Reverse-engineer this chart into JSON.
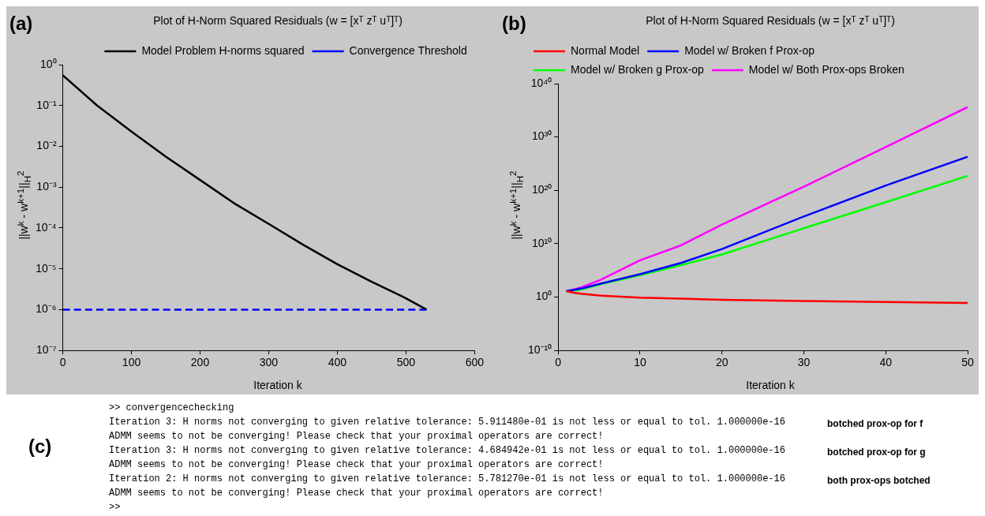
{
  "chart_data": [
    {
      "type": "line",
      "title": "Plot of H-Norm Squared Residuals (w = [xᵀ zᵀ uᵀ]ᵀ)",
      "xlabel": "Iteration k",
      "ylabel": "||w$^{k}$ - w$^{k+1}$||$_{H}$$^{2}$",
      "annotations": [
        "(a)"
      ],
      "log": "y",
      "legend": "top right",
      "marker": "none",
      "xlim": [
        0,
        600
      ],
      "xticks": [
        0,
        100,
        200,
        300,
        400,
        500,
        600
      ],
      "ylim": [
        1e-07,
        1
      ],
      "yticks": [
        {
          "value": 1e-07,
          "label": "10⁻⁷"
        },
        {
          "value": 1e-06,
          "label": "10⁻⁶"
        },
        {
          "value": 1e-05,
          "label": "10⁻⁵"
        },
        {
          "value": 0.0001,
          "label": "10⁻⁴"
        },
        {
          "value": 0.001,
          "label": "10⁻³"
        },
        {
          "value": 0.01,
          "label": "10⁻²"
        },
        {
          "value": 0.1,
          "label": "10⁻¹"
        },
        {
          "value": 1,
          "label": "10⁰"
        }
      ],
      "series": [
        {
          "name": "Model Problem H-norms squared",
          "color": "#000000",
          "line_style": "solid",
          "x": [
            0,
            50,
            100,
            150,
            200,
            250,
            300,
            350,
            400,
            450,
            500,
            530
          ],
          "values": [
            0.55,
            0.1,
            0.023,
            0.0056,
            0.0015,
            0.0004,
            0.000126,
            3.9e-05,
            1.3e-05,
            4.8e-06,
            1.9e-06,
            1e-06
          ]
        },
        {
          "name": "Convergence Threshold",
          "color": "#0000ff",
          "line_style": "dashed",
          "x": [
            0,
            530
          ],
          "values": [
            1e-06,
            1e-06
          ]
        }
      ]
    },
    {
      "type": "line",
      "title": "Plot of H-Norm Squared Residuals (w = [xᵀ zᵀ uᵀ]ᵀ)",
      "xlabel": "Iteration k",
      "ylabel": "||w$^{k}$ - w$^{k+1}$||$_{H}$$^{2}$",
      "annotations": [
        "(b)"
      ],
      "log": "y",
      "legend": "top left",
      "marker": "none",
      "line_style": "solid",
      "xlim": [
        0,
        50
      ],
      "xticks": [
        0,
        10,
        20,
        30,
        40,
        50
      ],
      "ylim": [
        1e-10,
        1e+40
      ],
      "yticks": [
        {
          "value": 1e-10,
          "label": "10⁻¹⁰"
        },
        {
          "value": 1,
          "label": "10⁰"
        },
        {
          "value": 10000000000.0,
          "label": "10¹⁰"
        },
        {
          "value": 1e+20,
          "label": "10²⁰"
        },
        {
          "value": 1e+30,
          "label": "10³⁰"
        },
        {
          "value": 1e+40,
          "label": "10⁴⁰"
        }
      ],
      "x": [
        1,
        2,
        3,
        5,
        10,
        15,
        20,
        30,
        40,
        50
      ],
      "series": [
        {
          "name": "Normal Model",
          "color": "#ff0000",
          "values": [
            13,
            6,
            4,
            2,
            0.8,
            0.5,
            0.3,
            0.18,
            0.12,
            0.08
          ]
        },
        {
          "name": "Model w/ Broken f Prox-op",
          "color": "#0000ff",
          "values": [
            13,
            23,
            47,
            280,
            20000,
            2500000,
            1000000000.0,
            1300000000000000.0,
            8e+20,
            2e+26
          ]
        },
        {
          "name": "Model w/ Broken g Prox-op",
          "color": "#00ff00",
          "values": [
            13,
            16,
            32,
            220,
            13000,
            1000000,
            100000000.0,
            8000000000000.0,
            6e+17,
            5e+22
          ]
        },
        {
          "name": "Model w/ Both Prox-ops Broken",
          "color": "#ff00ff",
          "values": [
            13,
            30,
            90,
            1300,
            8000000,
            5000000000.0,
            40000000000000.0,
            5e+20,
            1.3e+28,
            4e+35
          ]
        }
      ]
    },
    {
      "type": "other",
      "annotations": [
        "(c)",
        ">> convergencechecking",
        "Iteration 3: H norms not converging to given relative tolerance: 5.911480e-01 is not less or equal to tol. 1.000000e-16",
        "ADMM seems to not be converging! Please check that your proximal operators are correct!",
        "Iteration 3: H norms not converging to given relative tolerance: 4.684942e-01 is not less or equal to tol. 1.000000e-16",
        "ADMM seems to not be converging! Please check that your proximal operators are correct!",
        "Iteration 2: H norms not converging to given relative tolerance: 5.781270e-01 is not less or equal to tol. 1.000000e-16",
        "ADMM seems to not be converging! Please check that your proximal operators are correct!",
        ">>",
        "botched prox-op for f",
        "botched prox-op for g",
        "both prox-ops botched"
      ]
    }
  ]
}
